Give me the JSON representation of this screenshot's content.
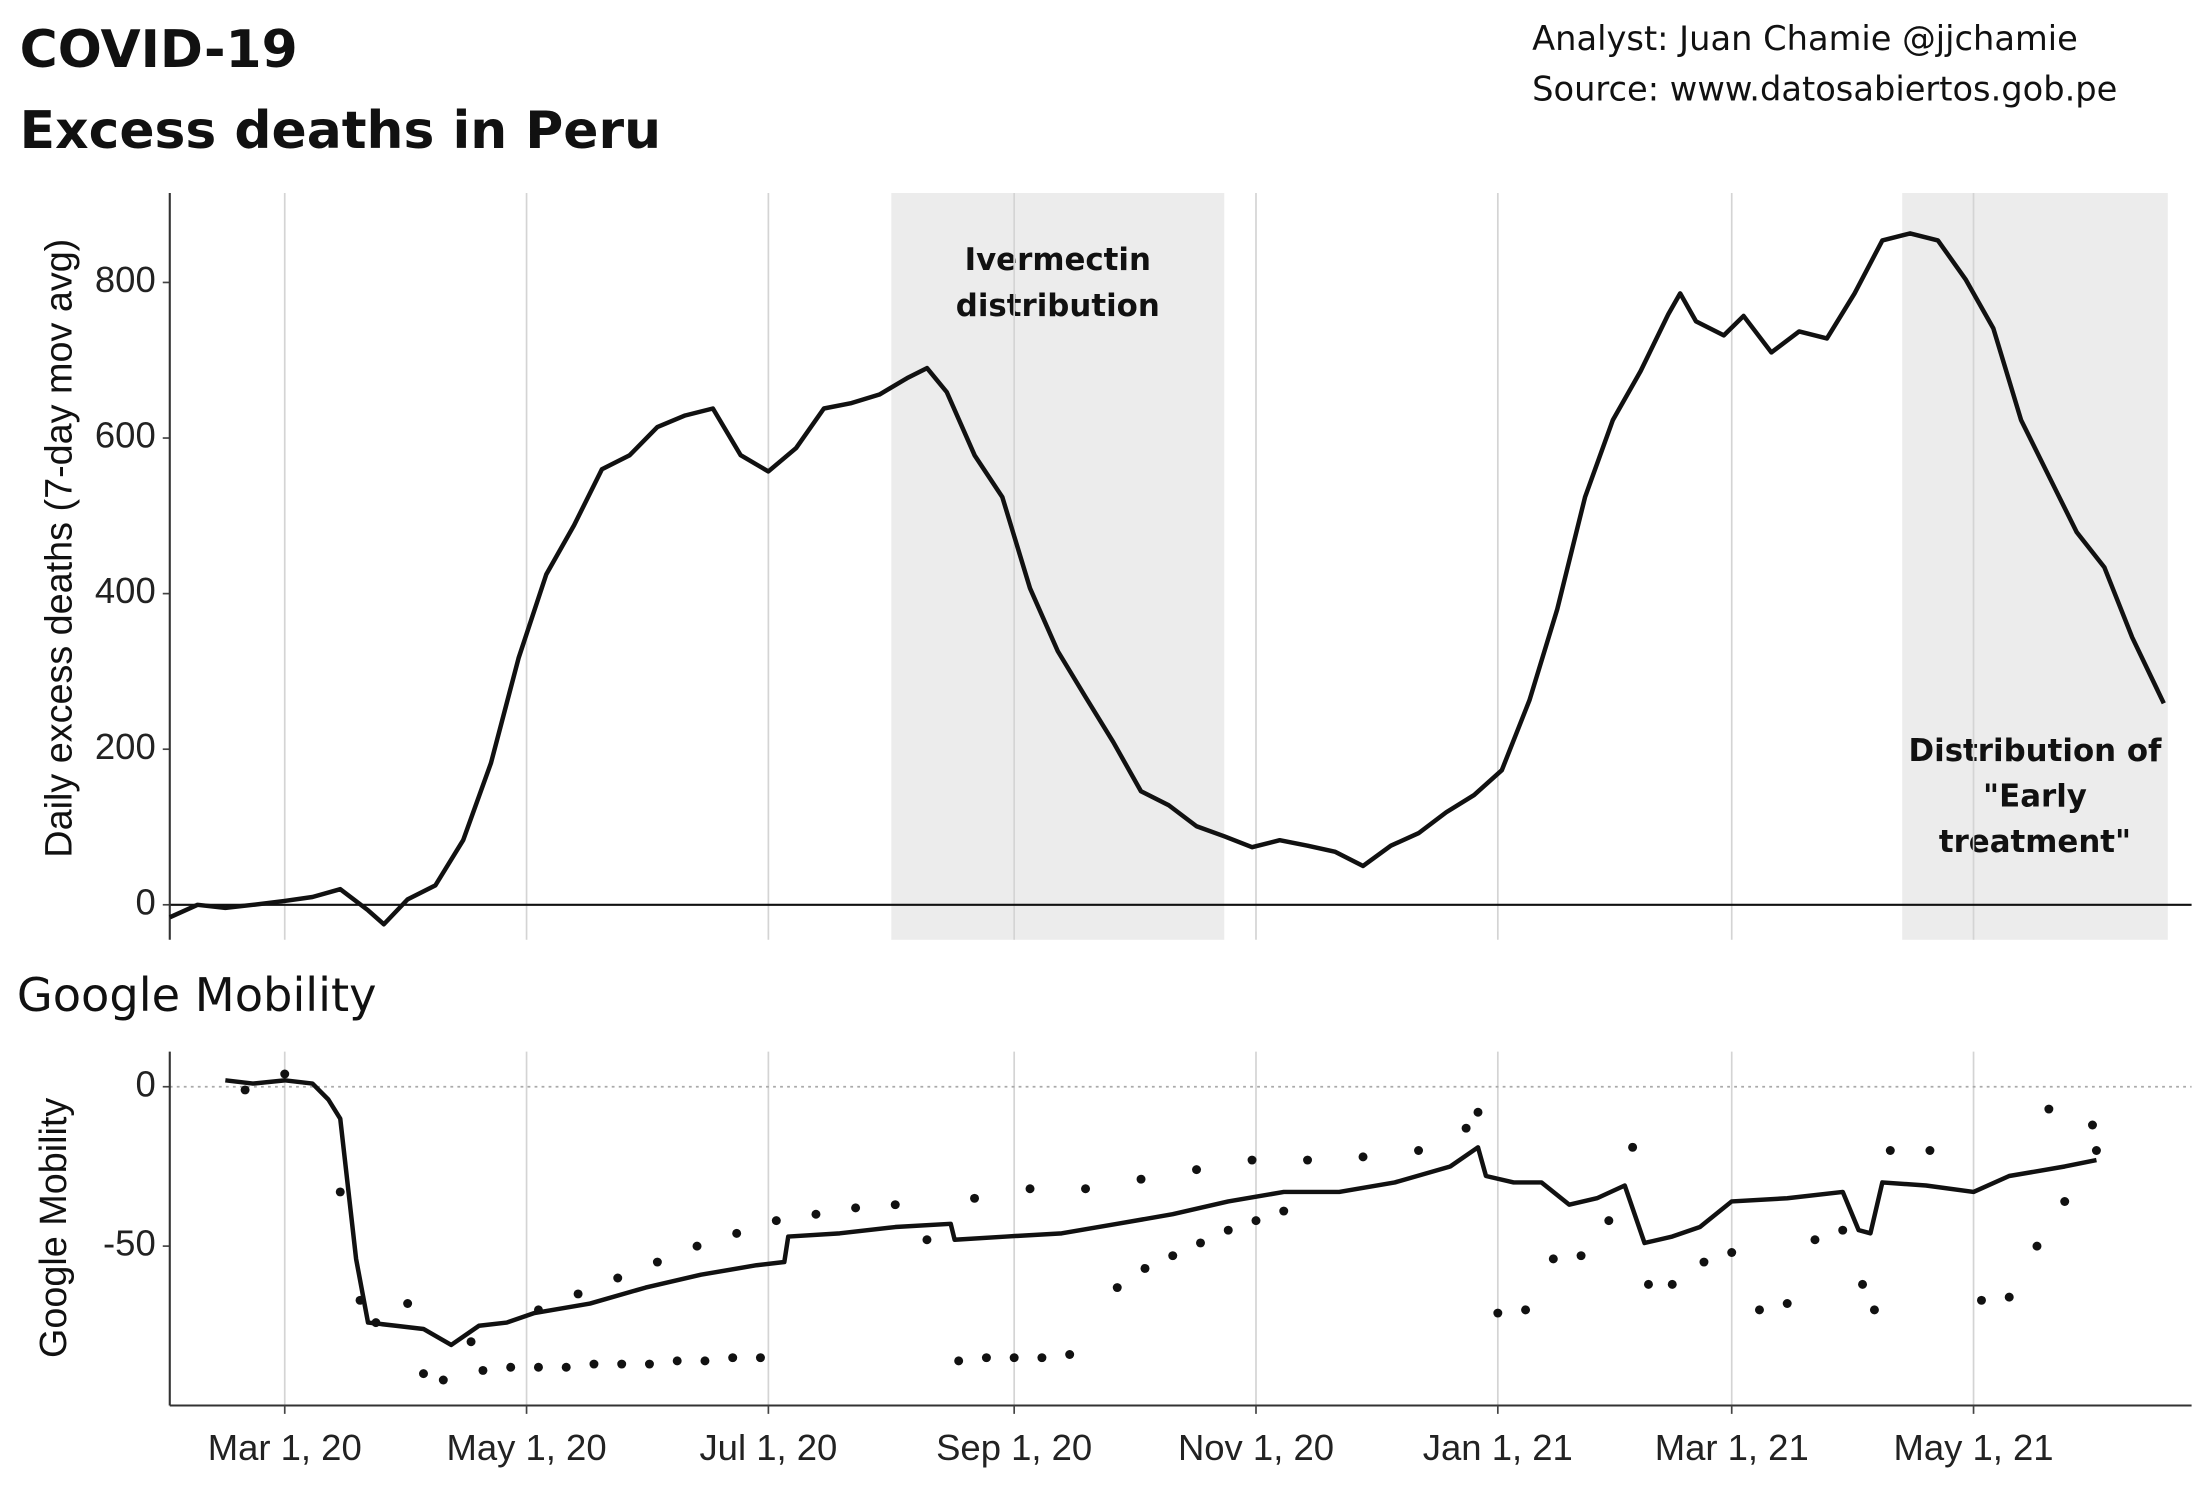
{
  "chart_data": [
    {
      "type": "line",
      "title": "COVID-19",
      "subtitle": "Excess deaths in Peru",
      "credits": [
        "Analyst: Juan Chamie @jjchamie",
        "Source: www.datosabiertos.gob.pe"
      ],
      "ylabel": "Daily excess deaths (7-day mov avg)",
      "ylim": [
        -45,
        915
      ],
      "yticks": [
        0,
        200,
        400,
        600,
        800
      ],
      "zeroline": "solid",
      "color": "#111111",
      "annotations": [
        {
          "lines": [
            "Ivermectin",
            "distribution"
          ],
          "start": "2020-08-01",
          "end": "2020-10-24",
          "align": "top"
        },
        {
          "lines": [
            "Distribution of",
            "\"Early",
            "treatment\""
          ],
          "start": "2021-04-13",
          "end": "2021-06-19",
          "align": "bottom"
        }
      ],
      "x": [
        "2020-02-01",
        "2020-02-08",
        "2020-02-15",
        "2020-02-22",
        "2020-03-01",
        "2020-03-08",
        "2020-03-15",
        "2020-03-22",
        "2020-03-26",
        "2020-04-01",
        "2020-04-08",
        "2020-04-15",
        "2020-04-22",
        "2020-04-29",
        "2020-05-06",
        "2020-05-13",
        "2020-05-20",
        "2020-05-27",
        "2020-06-03",
        "2020-06-10",
        "2020-06-17",
        "2020-06-24",
        "2020-07-01",
        "2020-07-08",
        "2020-07-15",
        "2020-07-22",
        "2020-07-29",
        "2020-08-05",
        "2020-08-10",
        "2020-08-15",
        "2020-08-22",
        "2020-08-29",
        "2020-09-05",
        "2020-09-12",
        "2020-09-19",
        "2020-09-26",
        "2020-10-03",
        "2020-10-10",
        "2020-10-17",
        "2020-10-24",
        "2020-10-31",
        "2020-11-07",
        "2020-11-14",
        "2020-11-21",
        "2020-11-28",
        "2020-12-05",
        "2020-12-12",
        "2020-12-19",
        "2020-12-26",
        "2021-01-02",
        "2021-01-09",
        "2021-01-16",
        "2021-01-23",
        "2021-01-30",
        "2021-02-06",
        "2021-02-13",
        "2021-02-16",
        "2021-02-20",
        "2021-02-27",
        "2021-03-04",
        "2021-03-11",
        "2021-03-18",
        "2021-03-25",
        "2021-04-01",
        "2021-04-08",
        "2021-04-15",
        "2021-04-22",
        "2021-04-29",
        "2021-05-06",
        "2021-05-13",
        "2021-05-20",
        "2021-05-27",
        "2021-06-03",
        "2021-06-10",
        "2021-06-18"
      ],
      "values": [
        -16,
        0,
        -4,
        0,
        5,
        10,
        20,
        -7,
        -25,
        7,
        25,
        83,
        182,
        317,
        425,
        488,
        560,
        578,
        614,
        629,
        638,
        578,
        557,
        587,
        638,
        645,
        656,
        677,
        690,
        659,
        578,
        524,
        407,
        326,
        267,
        209,
        146,
        128,
        101,
        88,
        74,
        83,
        76,
        68,
        50,
        76,
        92,
        119,
        141,
        173,
        263,
        380,
        524,
        623,
        686,
        759,
        786,
        750,
        732,
        757,
        710,
        737,
        728,
        786,
        854,
        863,
        854,
        804,
        741,
        623,
        551,
        479,
        434,
        344,
        259
      ]
    },
    {
      "type": "line",
      "title": "Google Mobility",
      "ylabel": "Google Mobility",
      "ylim": [
        -100,
        11
      ],
      "yticks": [
        -50,
        0
      ],
      "zeroline": "dotted",
      "color": "#111111",
      "xlim": [
        "2020-02-01",
        "2021-06-25"
      ],
      "xticks": [
        {
          "value": "2020-03-01",
          "label": "Mar 1, 20"
        },
        {
          "value": "2020-05-01",
          "label": "May 1, 20"
        },
        {
          "value": "2020-07-01",
          "label": "Jul 1, 20"
        },
        {
          "value": "2020-09-01",
          "label": "Sep 1, 20"
        },
        {
          "value": "2020-11-01",
          "label": "Nov 1, 20"
        },
        {
          "value": "2021-01-01",
          "label": "Jan 1, 21"
        },
        {
          "value": "2021-03-01",
          "label": "Mar 1, 21"
        },
        {
          "value": "2021-05-01",
          "label": "May 1, 21"
        }
      ],
      "x": [
        "2020-02-15",
        "2020-02-22",
        "2020-03-01",
        "2020-03-08",
        "2020-03-12",
        "2020-03-15",
        "2020-03-19",
        "2020-03-22",
        "2020-03-29",
        "2020-04-05",
        "2020-04-12",
        "2020-04-19",
        "2020-04-26",
        "2020-05-03",
        "2020-05-17",
        "2020-05-31",
        "2020-06-14",
        "2020-06-28",
        "2020-07-05",
        "2020-07-06",
        "2020-07-19",
        "2020-08-02",
        "2020-08-16",
        "2020-08-17",
        "2020-08-30",
        "2020-09-13",
        "2020-09-27",
        "2020-10-11",
        "2020-10-25",
        "2020-11-08",
        "2020-11-22",
        "2020-12-06",
        "2020-12-20",
        "2020-12-27",
        "2020-12-29",
        "2021-01-05",
        "2021-01-12",
        "2021-01-19",
        "2021-01-26",
        "2021-02-02",
        "2021-02-07",
        "2021-02-14",
        "2021-02-21",
        "2021-03-01",
        "2021-03-15",
        "2021-03-29",
        "2021-04-02",
        "2021-04-05",
        "2021-04-08",
        "2021-04-19",
        "2021-05-01",
        "2021-05-10",
        "2021-05-24",
        "2021-06-01"
      ],
      "values": [
        2,
        1,
        2,
        1,
        -4,
        -10,
        -54,
        -74,
        -75,
        -76,
        -81,
        -75,
        -74,
        -71,
        -68,
        -63,
        -59,
        -56,
        -55,
        -47,
        -46,
        -44,
        -43,
        -48,
        -47,
        -46,
        -43,
        -40,
        -36,
        -33,
        -33,
        -30,
        -25,
        -19,
        -28,
        -30,
        -30,
        -37,
        -35,
        -31,
        -49,
        -47,
        -44,
        -36,
        -35,
        -33,
        -45,
        -46,
        -30,
        -31,
        -33,
        -28,
        -25,
        -23
      ],
      "scatter": {
        "x": [
          "2020-02-20",
          "2020-03-01",
          "2020-03-15",
          "2020-03-20",
          "2020-03-24",
          "2020-04-01",
          "2020-04-05",
          "2020-04-10",
          "2020-04-17",
          "2020-04-20",
          "2020-04-27",
          "2020-05-04",
          "2020-05-04",
          "2020-05-11",
          "2020-05-14",
          "2020-05-18",
          "2020-05-24",
          "2020-05-25",
          "2020-06-01",
          "2020-06-03",
          "2020-06-08",
          "2020-06-13",
          "2020-06-15",
          "2020-06-22",
          "2020-06-23",
          "2020-06-29",
          "2020-07-03",
          "2020-07-13",
          "2020-07-23",
          "2020-08-02",
          "2020-08-10",
          "2020-08-18",
          "2020-08-22",
          "2020-08-25",
          "2020-09-01",
          "2020-09-05",
          "2020-09-08",
          "2020-09-15",
          "2020-09-19",
          "2020-09-27",
          "2020-10-03",
          "2020-10-04",
          "2020-10-11",
          "2020-10-17",
          "2020-10-18",
          "2020-10-25",
          "2020-10-31",
          "2020-11-01",
          "2020-11-08",
          "2020-11-14",
          "2020-11-28",
          "2020-12-12",
          "2020-12-24",
          "2020-12-27",
          "2021-01-01",
          "2021-01-08",
          "2021-01-15",
          "2021-01-22",
          "2021-01-29",
          "2021-02-04",
          "2021-02-08",
          "2021-02-14",
          "2021-02-22",
          "2021-03-01",
          "2021-03-08",
          "2021-03-15",
          "2021-03-22",
          "2021-03-29",
          "2021-04-03",
          "2021-04-06",
          "2021-04-10",
          "2021-04-20",
          "2021-05-03",
          "2021-05-10",
          "2021-05-17",
          "2021-05-20",
          "2021-05-24",
          "2021-05-31",
          "2021-06-01"
        ],
        "values": [
          -1,
          4,
          -33,
          -67,
          -74,
          -68,
          -90,
          -92,
          -80,
          -89,
          -88,
          -88,
          -70,
          -88,
          -65,
          -87,
          -60,
          -87,
          -87,
          -55,
          -86,
          -50,
          -86,
          -85,
          -46,
          -85,
          -42,
          -40,
          -38,
          -37,
          -48,
          -86,
          -35,
          -85,
          -85,
          -32,
          -85,
          -84,
          -32,
          -63,
          -29,
          -57,
          -53,
          -26,
          -49,
          -45,
          -23,
          -42,
          -39,
          -23,
          -22,
          -20,
          -13,
          -8,
          -71,
          -70,
          -54,
          -53,
          -42,
          -19,
          -62,
          -62,
          -55,
          -52,
          -70,
          -68,
          -48,
          -45,
          -62,
          -70,
          -20,
          -20,
          -67,
          -66,
          -50,
          -7,
          -36,
          -12,
          -20
        ]
      }
    }
  ]
}
